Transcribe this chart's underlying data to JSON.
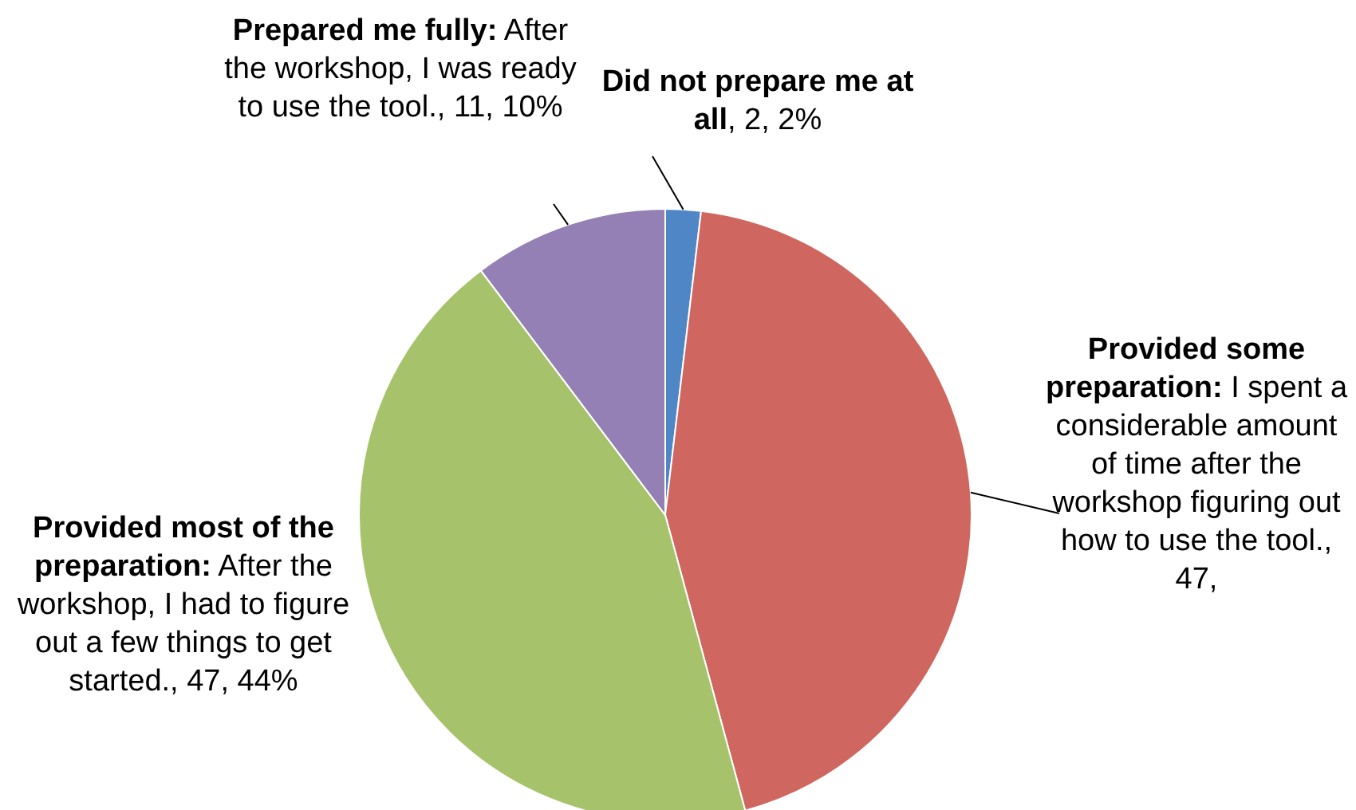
{
  "chart_data": {
    "type": "pie",
    "categories": [
      "Did not prepare me at all",
      "Provided some preparation: I spent a considerable amount of time after the workshop figuring out how to use the tool.",
      "Provided most of the preparation: After the workshop, I had to figure out a few things to get started.",
      "Prepared me fully: After the workshop, I was ready to use the tool."
    ],
    "values": [
      2,
      47,
      47,
      11
    ],
    "value_labels": [
      ", 2, 2%",
      ", 47,",
      ", 47, 44%",
      ", 11, 10%"
    ],
    "colors": [
      "#4f86c6",
      "#cf665f",
      "#a6c36b",
      "#9480b4"
    ]
  }
}
